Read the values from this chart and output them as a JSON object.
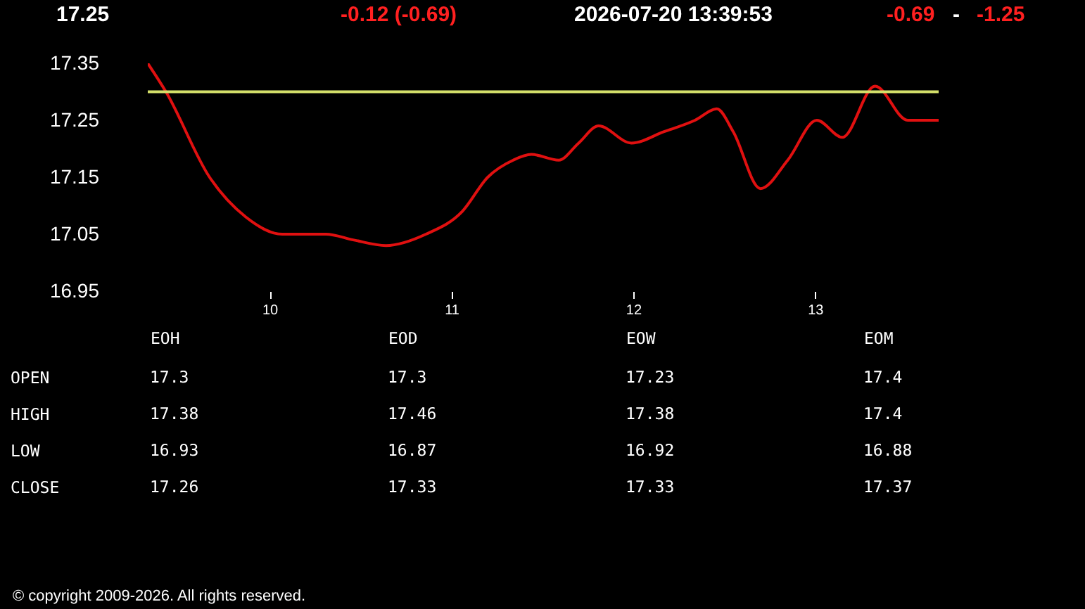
{
  "chart_data": [
    {
      "type": "line",
      "annotations": [
        "17.25",
        "-0.12  (-0.69)",
        "2026-07-20   13:39:53",
        "-0.69",
        "-",
        "-1.25",
        "© copyright 2009-2026. All rights reserved."
      ],
      "x": [
        9.33,
        9.43,
        9.67,
        9.87,
        10.07,
        10.31,
        10.46,
        10.64,
        10.86,
        11.06,
        11.2,
        11.34,
        11.44,
        11.59,
        11.7,
        11.81,
        11.99,
        12.17,
        12.34,
        12.46,
        12.55,
        12.7,
        12.85,
        13.01,
        13.15,
        13.33,
        13.51,
        13.68
      ],
      "series": [
        {
          "color": "#e01010",
          "values": [
            17.35,
            17.3,
            17.15,
            17.08,
            17.05,
            17.05,
            17.04,
            17.03,
            17.05,
            17.09,
            17.15,
            17.18,
            17.19,
            17.18,
            17.21,
            17.24,
            17.21,
            17.23,
            17.25,
            17.27,
            17.23,
            17.13,
            17.18,
            17.25,
            17.22,
            17.31,
            17.25,
            17.25
          ]
        }
      ],
      "xlim": [
        9.33,
        13.68
      ],
      "xticks": [
        10,
        11,
        12,
        13
      ],
      "ylim": [
        16.95,
        17.35
      ],
      "yticks": [
        16.95,
        17.05,
        17.15,
        17.25,
        17.35
      ],
      "ref_lines": [
        {
          "axis": "y",
          "value": 17.3,
          "color": "#d4e06a"
        }
      ],
      "grid": false,
      "marker": "none",
      "line_style": "solid"
    },
    {
      "type": "other",
      "categories": [
        "EOH",
        "EOD",
        "EOW",
        "EOM"
      ],
      "y_categories": [
        "OPEN",
        "HIGH",
        "LOW",
        "CLOSE"
      ],
      "cells": [
        [
          "17.3",
          "17.3",
          "17.23",
          "17.4"
        ],
        [
          "17.38",
          "17.46",
          "17.38",
          "17.4"
        ],
        [
          "16.93",
          "16.87",
          "16.92",
          "16.88"
        ],
        [
          "17.26",
          "17.33",
          "17.33",
          "17.37"
        ]
      ]
    }
  ]
}
